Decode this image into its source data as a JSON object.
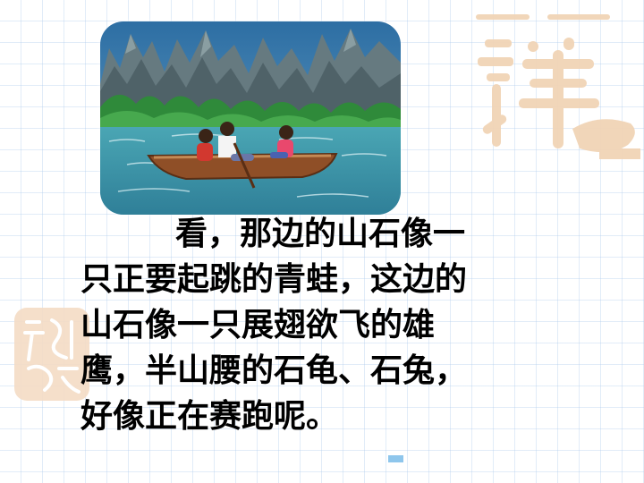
{
  "illustration": {
    "description_icon": "boat-on-river-illustration",
    "colors": {
      "sky": "#3f7aa8",
      "mountains": "#5c6e74",
      "trees": "#2e8f3b",
      "water": "#2f8fa4",
      "boat": "#9a5a2e"
    }
  },
  "passage": {
    "lines": [
      "看，那边的山石像一",
      "只正要起跳的青蛙，这边的",
      "山石像一只展翅欲飞的雄",
      "鹰，半山腰的石龟、石兔，",
      "好像正在赛跑呢。"
    ]
  },
  "decor": {
    "seal_color": "#f0d2b4",
    "mark_color": "#8ec6ec"
  }
}
